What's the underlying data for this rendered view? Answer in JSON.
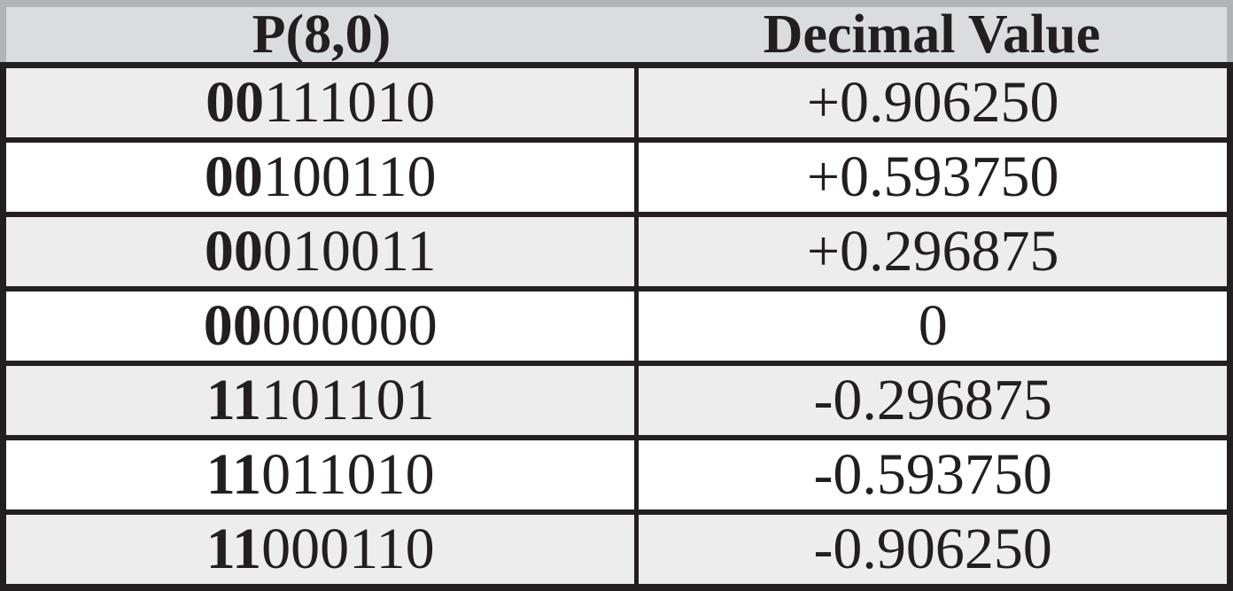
{
  "colors": {
    "header_bg": "#dbdcde",
    "row_alt_bg": "#ededee",
    "row_bg": "#ffffff",
    "ink_black": "#231f20",
    "outer_gray_border": "#b1b3b5"
  },
  "table": {
    "columns": [
      {
        "label": "P(8,0)"
      },
      {
        "label": "Decimal Value"
      }
    ],
    "rows": [
      {
        "sign_bits": "00",
        "magnitude_bits": "111010",
        "decimal_value": "+0.906250"
      },
      {
        "sign_bits": "00",
        "magnitude_bits": "100110",
        "decimal_value": "+0.593750"
      },
      {
        "sign_bits": "00",
        "magnitude_bits": "010011",
        "decimal_value": "+0.296875"
      },
      {
        "sign_bits": "00",
        "magnitude_bits": "000000",
        "decimal_value": "0"
      },
      {
        "sign_bits": "11",
        "magnitude_bits": "101101",
        "decimal_value": "-0.296875"
      },
      {
        "sign_bits": "11",
        "magnitude_bits": "011010",
        "decimal_value": "-0.593750"
      },
      {
        "sign_bits": "11",
        "magnitude_bits": "000110",
        "decimal_value": "-0.906250"
      }
    ]
  }
}
